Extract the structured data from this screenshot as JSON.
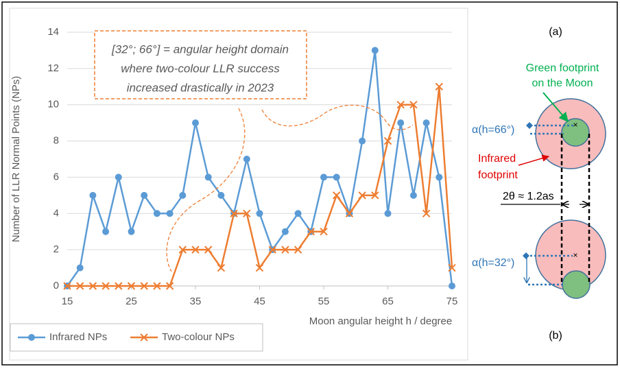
{
  "chart_data": {
    "type": "line",
    "annotations": [
      "[32°; 66°] = angular height domain",
      "where two-colour LLR success",
      "increased drastically in 2023"
    ],
    "xlabel": "Moon angular height h / degree",
    "ylabel": "Number of LLR Normal Points (NPs)",
    "x": [
      15,
      17,
      19,
      21,
      23,
      25,
      27,
      29,
      31,
      33,
      35,
      37,
      39,
      41,
      43,
      45,
      47,
      49,
      51,
      53,
      55,
      57,
      59,
      61,
      63,
      65,
      67,
      69,
      71,
      73,
      75
    ],
    "series": [
      {
        "name": "Infrared NPs",
        "color": "#5b9bd5",
        "marker": "circle",
        "values": [
          0,
          1,
          5,
          3,
          6,
          3,
          5,
          4,
          4,
          5,
          9,
          6,
          5,
          4,
          7,
          4,
          2,
          3,
          4,
          3,
          6,
          6,
          4,
          8,
          13,
          4,
          9,
          5,
          9,
          6,
          0
        ]
      },
      {
        "name": "Two-colour NPs",
        "color": "#ed7d31",
        "marker": "x",
        "values": [
          0,
          0,
          0,
          0,
          0,
          0,
          0,
          0,
          0,
          2,
          2,
          2,
          1,
          4,
          4,
          1,
          2,
          2,
          2,
          3,
          3,
          5,
          4,
          5,
          5,
          8,
          10,
          10,
          4,
          11,
          1
        ]
      }
    ],
    "xlim": [
      15,
      75
    ],
    "xticks": [
      15,
      25,
      35,
      45,
      55,
      65,
      75
    ],
    "ylim": [
      0,
      14
    ],
    "yticks": [
      0,
      2,
      4,
      6,
      8,
      10,
      12,
      14
    ],
    "grid": true,
    "legend": "bottom-left"
  },
  "diagram": {
    "label_a": "(a)",
    "label_b": "(b)",
    "green_1": "Green footprint",
    "green_2": "on the Moon",
    "infrared_1": "Infrared",
    "infrared_2": "footprint",
    "alpha_66": "α(h=66°)",
    "alpha_32": "α(h=32°)",
    "theta": "2θ ≈ 1.2as"
  }
}
